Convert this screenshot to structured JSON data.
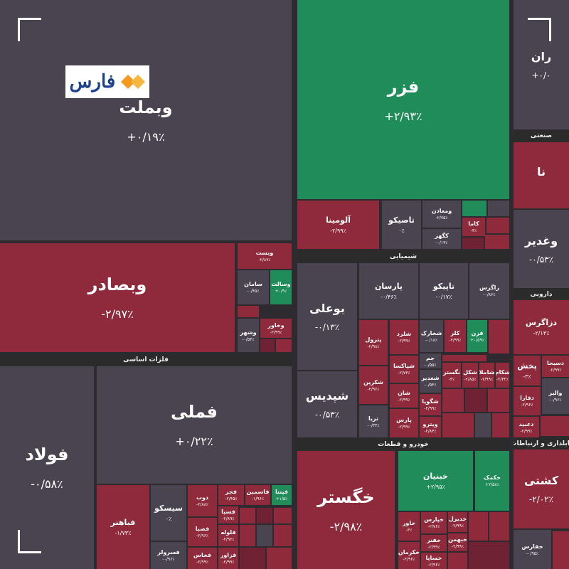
{
  "logo": "فارس",
  "sections": [
    {
      "title": "فلزات اساسی"
    },
    {
      "title": "شیمیایی"
    },
    {
      "title": "خودرو و قطعات"
    },
    {
      "title": "صنعتی"
    },
    {
      "title": "دارویی"
    },
    {
      "title": "تابلداری و ارتباطات"
    }
  ],
  "tiles": [
    {
      "name": "وبملت",
      "change": "+۰/۱۹٪",
      "color": "#4a4350"
    },
    {
      "name": "فزر",
      "change": "+۲/۹۳٪",
      "color": "#1f8c5a"
    },
    {
      "name": "ران",
      "change": "+۰/۰",
      "color": "#4a4350"
    },
    {
      "name": "نا",
      "change": "",
      "color": "#8e2a3c"
    },
    {
      "name": "وغدیر",
      "change": "-۰/۵۳٪",
      "color": "#4a4350"
    },
    {
      "name": "دزاگرس",
      "change": "-۲/۱۴٪",
      "color": "#8e2a3c"
    },
    {
      "name": "پخش",
      "change": "-۳٪",
      "color": "#8e2a3c"
    },
    {
      "name": "دسبحا",
      "change": "-۲/۹۹٪",
      "color": "#8e2a3c"
    },
    {
      "name": "والبر",
      "change": "-۰/۹۶٪",
      "color": "#4a4350"
    },
    {
      "name": "دفارا",
      "change": "-۲/۹۶٪",
      "color": "#8e2a3c"
    },
    {
      "name": "دعبید",
      "change": "-۲/۹۹٪",
      "color": "#8e2a3c"
    },
    {
      "name": "کشتی",
      "change": "-۲/۰۲٪",
      "color": "#8e2a3c"
    },
    {
      "name": "حفارس",
      "change": "-۰/۹۵٪",
      "color": "#4a4350"
    },
    {
      "name": "وبصادر",
      "change": "-۲/۹۷٪",
      "color": "#8e2a3c"
    },
    {
      "name": "وبست",
      "change": "-۲/۸۷٪",
      "color": "#8e2a3c"
    },
    {
      "name": "سامان",
      "change": "-۰/۴۵٪",
      "color": "#4a4350"
    },
    {
      "name": "وسالت",
      "change": "+۰/۹٪",
      "color": "#1f8c5a"
    },
    {
      "name": "وخاور",
      "change": "-۲/۹۹٪",
      "color": "#8e2a3c"
    },
    {
      "name": "وشهر",
      "change": "-۰/۵۴٪",
      "color": "#4a4350"
    },
    {
      "name": "فولاد",
      "change": "-۰/۵۸٪",
      "color": "#4a4350"
    },
    {
      "name": "فملی",
      "change": "+۰/۲۲٪",
      "color": "#4a4350"
    },
    {
      "name": "فباهنر",
      "change": "-۱/۷۳٪",
      "color": "#8e2a3c"
    },
    {
      "name": "سیسکو",
      "change": "۰٪",
      "color": "#4a4350"
    },
    {
      "name": "فسرولر",
      "change": "-۰/۹۶٪",
      "color": "#4a4350"
    },
    {
      "name": "ذوب",
      "change": "-۲/۸۸٪",
      "color": "#8e2a3c"
    },
    {
      "name": "فصبا",
      "change": "-۲/۹۶٪",
      "color": "#8e2a3c"
    },
    {
      "name": "فخاس",
      "change": "-۲/۹۹٪",
      "color": "#8e2a3c"
    },
    {
      "name": "فجر",
      "change": "-۲/۴۵٪",
      "color": "#8e2a3c"
    },
    {
      "name": "فسپا",
      "change": "-۲/۸۹٪",
      "color": "#8e2a3c"
    },
    {
      "name": "فلوله",
      "change": "-۲/۹۶٪",
      "color": "#8e2a3c"
    },
    {
      "name": "فزاور",
      "change": "-۲/۹۹٪",
      "color": "#8e2a3c"
    },
    {
      "name": "فاسمین",
      "change": "-۱/۹۶٪",
      "color": "#8e2a3c"
    },
    {
      "name": "فپنتا",
      "change": "+۱/۵٪",
      "color": "#1f8c5a"
    },
    {
      "name": "آلومینا",
      "change": "-۲/۹۹٪",
      "color": "#8e2a3c"
    },
    {
      "name": "تاصیکو",
      "change": "۰٪",
      "color": "#4a4350"
    },
    {
      "name": "ومعادن",
      "change": "-۲/۷۵٪",
      "color": "#4a4350"
    },
    {
      "name": "کگهر",
      "change": "-۰/۱۳٪",
      "color": "#4a4350"
    },
    {
      "name": "کاما",
      "change": "-۳٪",
      "color": "#8e2a3c"
    },
    {
      "name": "بوعلی",
      "change": "-۰/۱۳٪",
      "color": "#4a4350"
    },
    {
      "name": "شپدیس",
      "change": "-۰/۵۳٪",
      "color": "#4a4350"
    },
    {
      "name": "پارسان",
      "change": "-۰/۴۶٪",
      "color": "#4a4350"
    },
    {
      "name": "تاپیکو",
      "change": "-۰/۱۷٪",
      "color": "#4a4350"
    },
    {
      "name": "زاگرس",
      "change": "-۰/۸۶٪",
      "color": "#4a4350"
    },
    {
      "name": "پترول",
      "change": "-۲/۹۸٪",
      "color": "#8e2a3c"
    },
    {
      "name": "شلرد",
      "change": "-۲/۹۹٪",
      "color": "#8e2a3c"
    },
    {
      "name": "شخارک",
      "change": "-۰/۱۸٪",
      "color": "#4a4350"
    },
    {
      "name": "کلر",
      "change": "-۲/۹۹٪",
      "color": "#8e2a3c"
    },
    {
      "name": "قرن",
      "change": "+۰/۵۹٪",
      "color": "#1f8c5a"
    },
    {
      "name": "شکرین",
      "change": "-۲/۹۶٪",
      "color": "#8e2a3c"
    },
    {
      "name": "شپاکسا",
      "change": "-۲/۷۳٪",
      "color": "#8e2a3c"
    },
    {
      "name": "شان",
      "change": "-۲/۹۹٪",
      "color": "#8e2a3c"
    },
    {
      "name": "پارس",
      "change": "-۲/۹۹٪",
      "color": "#8e2a3c"
    },
    {
      "name": "تریا",
      "change": "-۰/۳۴٪",
      "color": "#4a4350"
    },
    {
      "name": "جم",
      "change": "-۰/۵۵٪",
      "color": "#4a4350"
    },
    {
      "name": "شغدیر",
      "change": "-۰/۵۴٪",
      "color": "#4a4350"
    },
    {
      "name": "شگویا",
      "change": "-۲/۹۹٪",
      "color": "#8e2a3c"
    },
    {
      "name": "ویترو",
      "change": "-۲/۸۴٪",
      "color": "#8e2a3c"
    },
    {
      "name": "نگستر",
      "change": "-۳٪",
      "color": "#8e2a3c"
    },
    {
      "name": "شکل",
      "change": "-۲/۸۵٪",
      "color": "#8e2a3c"
    },
    {
      "name": "شاملا",
      "change": "-۲/۹۹٪",
      "color": "#8e2a3c"
    },
    {
      "name": "شکام",
      "change": "-۲/۳۲٪",
      "color": "#8e2a3c"
    },
    {
      "name": "خگستر",
      "change": "-۲/۹۸٪",
      "color": "#8e2a3c"
    },
    {
      "name": "خبنیان",
      "change": "+۲/۹۵٪",
      "color": "#1f8c5a"
    },
    {
      "name": "خکمک",
      "change": "+۲/۵۸٪",
      "color": "#1f8c5a"
    },
    {
      "name": "خاور",
      "change": "-۳٪",
      "color": "#8e2a3c"
    },
    {
      "name": "خکرمان",
      "change": "-۲/۹۶٪",
      "color": "#8e2a3c"
    },
    {
      "name": "خپارس",
      "change": "-۲/۷۶٪",
      "color": "#8e2a3c"
    },
    {
      "name": "خفنر",
      "change": "-۲/۹۹٪",
      "color": "#8e2a3c"
    },
    {
      "name": "خساپا",
      "change": "-۲/۹۶٪",
      "color": "#8e2a3c"
    },
    {
      "name": "خدیزل",
      "change": "-۲/۹۹٪",
      "color": "#8e2a3c"
    },
    {
      "name": "خبهمن",
      "change": "-۲/۹۹٪",
      "color": "#8e2a3c"
    }
  ]
}
